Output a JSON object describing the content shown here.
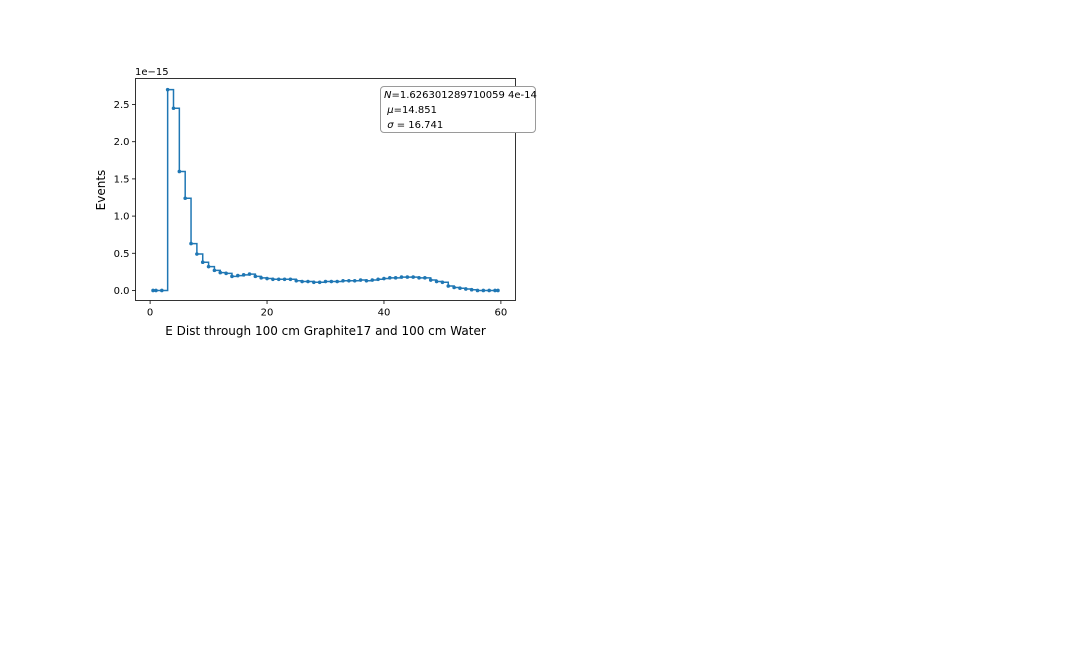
{
  "chart_data": {
    "type": "line",
    "style": "step-with-markers",
    "xlabel": "E Dist through 100 cm Graphite17 and 100 cm Water",
    "ylabel": "Events",
    "y_offset_label": "1e−15",
    "xlim": [
      -2.5,
      62.5
    ],
    "ylim": [
      -0.135,
      2.85
    ],
    "x_ticks": [
      0,
      20,
      40,
      60
    ],
    "x_tick_labels": [
      "0",
      "20",
      "40",
      "60"
    ],
    "y_ticks": [
      0.0,
      0.5,
      1.0,
      1.5,
      2.0,
      2.5
    ],
    "y_tick_labels": [
      "0.0",
      "0.5",
      "1.0",
      "1.5",
      "2.0",
      "2.5"
    ],
    "grid": false,
    "color": "#1f77b4",
    "series": [
      {
        "x": [
          0.5,
          1.5,
          2.5,
          3.5,
          4.5,
          5.5,
          6.5,
          7.5,
          8.5,
          9.5,
          10.5,
          11.5,
          12.5,
          13.5,
          14.5,
          15.5,
          16.5,
          17.5,
          18.5,
          19.5,
          20.5,
          21.5,
          22.5,
          23.5,
          24.5,
          25.5,
          26.5,
          27.5,
          28.5,
          29.5,
          30.5,
          31.5,
          32.5,
          33.5,
          34.5,
          35.5,
          36.5,
          37.5,
          38.5,
          39.5,
          40.5,
          41.5,
          42.5,
          43.5,
          44.5,
          45.5,
          46.5,
          47.5,
          48.5,
          49.5,
          50.5,
          51.5,
          52.5,
          53.5,
          54.5,
          55.5,
          56.5,
          57.5,
          58.5,
          59.5
        ],
        "y": [
          0.0,
          0.0,
          0.0,
          2.7,
          2.45,
          1.6,
          1.24,
          0.63,
          0.49,
          0.38,
          0.32,
          0.27,
          0.24,
          0.23,
          0.19,
          0.2,
          0.21,
          0.22,
          0.19,
          0.17,
          0.16,
          0.15,
          0.15,
          0.15,
          0.15,
          0.13,
          0.12,
          0.12,
          0.11,
          0.11,
          0.12,
          0.12,
          0.12,
          0.13,
          0.13,
          0.13,
          0.14,
          0.13,
          0.14,
          0.15,
          0.16,
          0.17,
          0.17,
          0.18,
          0.18,
          0.18,
          0.17,
          0.17,
          0.14,
          0.12,
          0.11,
          0.06,
          0.04,
          0.03,
          0.02,
          0.01,
          0.0,
          0.0,
          0.0,
          0.0
        ]
      }
    ]
  },
  "stats": {
    "n_symbol": "N",
    "n_value": "=1.626301289710059 4e-14",
    "mu_symbol": "μ",
    "mu_value": "=14.851",
    "sigma_symbol": "σ",
    "sigma_value": " = 16.741"
  }
}
